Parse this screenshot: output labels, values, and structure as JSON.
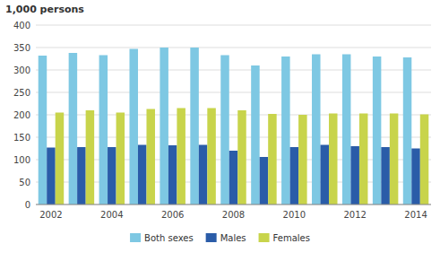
{
  "chart_data": {
    "type": "bar",
    "ylabel": "1,000 persons",
    "categories": [
      "2002",
      null,
      "2004",
      null,
      "2006",
      null,
      "2008",
      null,
      "2010",
      null,
      "2012",
      null,
      "2014"
    ],
    "series": [
      {
        "name": "Both sexes",
        "color": "#7ec8e3",
        "values": [
          332,
          338,
          333,
          347,
          350,
          350,
          333,
          310,
          330,
          335,
          335,
          330,
          328
        ]
      },
      {
        "name": "Males",
        "color": "#2a5ca8",
        "values": [
          127,
          128,
          128,
          133,
          132,
          133,
          120,
          106,
          128,
          133,
          130,
          128,
          125
        ]
      },
      {
        "name": "Females",
        "color": "#c8d44b",
        "values": [
          205,
          210,
          205,
          213,
          215,
          215,
          210,
          202,
          200,
          203,
          203,
          203,
          201
        ]
      }
    ],
    "ylim": [
      0,
      400
    ],
    "yticks": [
      0,
      50,
      100,
      150,
      200,
      250,
      300,
      350,
      400
    ],
    "grid": true,
    "legend": "bottom"
  }
}
